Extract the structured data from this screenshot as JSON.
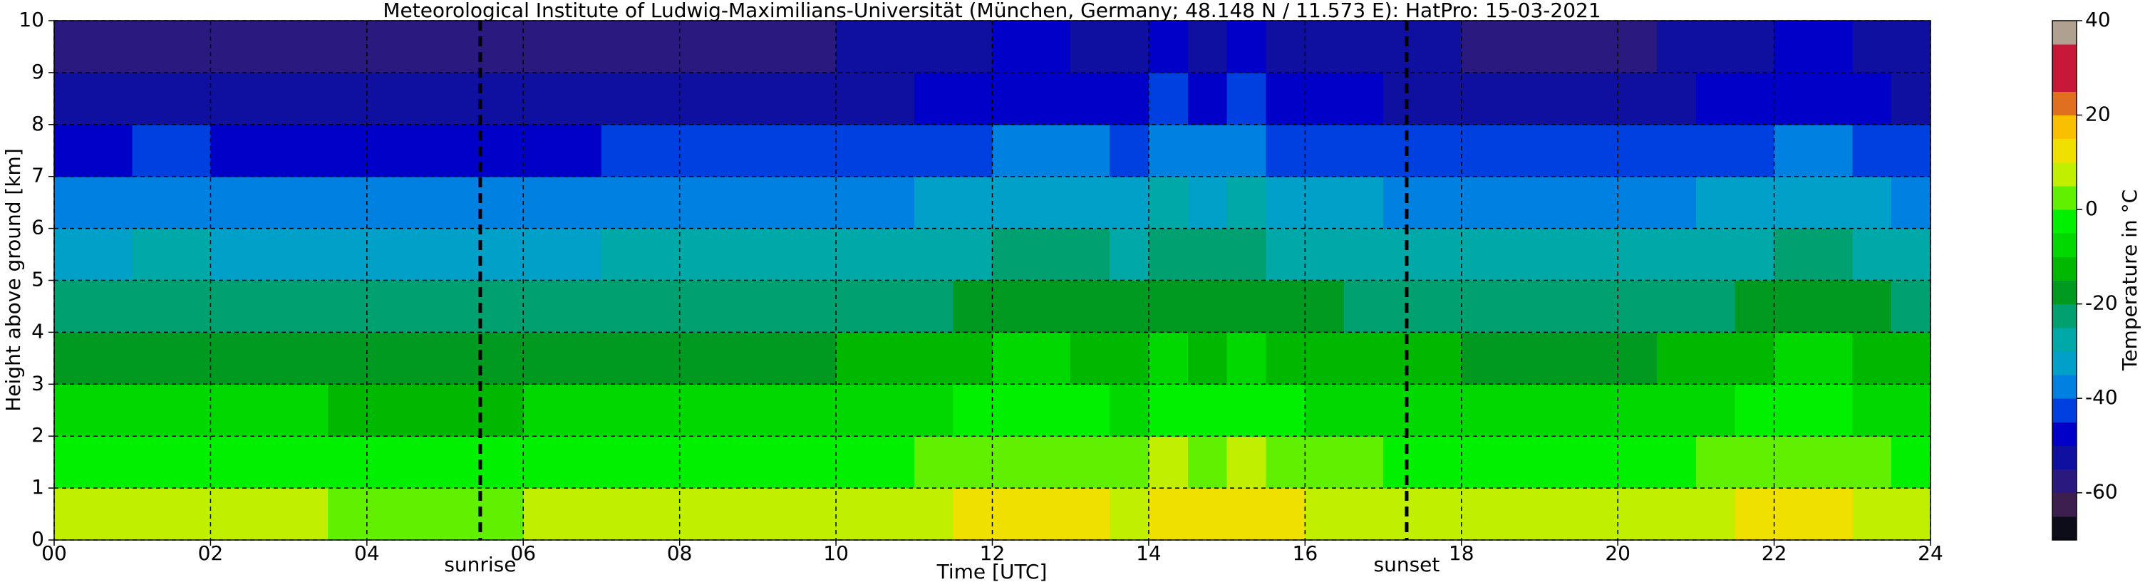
{
  "chart_data": {
    "type": "heatmap",
    "title": "Meteorological Institute of Ludwig-Maximilians-Universität (München, Germany; 48.148 N / 11.573 E):    HatPro: 15-03-2021",
    "x_label": "Time [UTC]",
    "y_label": "Height above ground [km]",
    "x": [
      0,
      0.5,
      1,
      1.5,
      2,
      2.5,
      3,
      3.5,
      4,
      4.5,
      5,
      5.5,
      6,
      6.5,
      7,
      7.5,
      8,
      8.5,
      9,
      9.5,
      10,
      10.5,
      11,
      11.5,
      12,
      12.5,
      13,
      13.5,
      14,
      14.5,
      15,
      15.5,
      16,
      16.5,
      17,
      17.5,
      18,
      18.5,
      19,
      19.5,
      20,
      20.5,
      21,
      21.5,
      22,
      22.5,
      23,
      23.5
    ],
    "y": [
      0,
      1,
      2,
      3,
      4,
      5,
      6,
      7,
      8,
      9
    ],
    "z": [
      [
        5,
        5,
        6,
        6,
        5,
        5,
        5,
        4,
        4,
        4,
        4,
        4,
        5,
        5,
        6,
        6,
        6,
        6,
        6,
        6,
        7,
        7,
        8,
        10,
        12,
        12,
        11,
        9,
        13,
        11,
        13,
        10,
        9,
        8,
        7,
        7,
        6,
        6,
        6,
        6,
        6,
        7,
        8,
        10,
        12,
        12,
        9,
        7
      ],
      [
        -3,
        -3,
        -2,
        -2,
        -3,
        -3,
        -3,
        -4,
        -4,
        -4,
        -4,
        -4,
        -3,
        -3,
        -2,
        -2,
        -2,
        -2,
        -2,
        -2,
        -1,
        -1,
        0,
        2,
        4,
        4,
        3,
        1,
        5,
        3,
        5,
        2,
        1,
        0,
        -1,
        -1,
        -2,
        -2,
        -2,
        -2,
        -2,
        -1,
        0,
        2,
        4,
        4,
        1,
        -1
      ],
      [
        -10,
        -10,
        -9,
        -9,
        -10,
        -10,
        -10,
        -11,
        -11,
        -11,
        -11,
        -11,
        -10,
        -10,
        -9,
        -9,
        -9,
        -9,
        -9,
        -9,
        -8,
        -8,
        -7,
        -5,
        -3,
        -3,
        -4,
        -6,
        -2,
        -4,
        -2,
        -5,
        -6,
        -7,
        -8,
        -8,
        -9,
        -9,
        -9,
        -9,
        -9,
        -8,
        -7,
        -5,
        -3,
        -3,
        -6,
        -8
      ],
      [
        -17,
        -17,
        -16,
        -16,
        -17,
        -17,
        -17,
        -18,
        -18,
        -18,
        -18,
        -18,
        -17,
        -17,
        -16,
        -16,
        -16,
        -16,
        -16,
        -16,
        -15,
        -15,
        -14,
        -12,
        -10,
        -10,
        -11,
        -13,
        -9,
        -11,
        -9,
        -12,
        -13,
        -14,
        -15,
        -15,
        -16,
        -16,
        -16,
        -16,
        -16,
        -15,
        -14,
        -12,
        -10,
        -10,
        -13,
        -15
      ],
      [
        -24,
        -24,
        -23,
        -23,
        -24,
        -24,
        -24,
        -25,
        -25,
        -25,
        -25,
        -25,
        -24,
        -24,
        -23,
        -23,
        -23,
        -23,
        -23,
        -23,
        -22,
        -22,
        -21,
        -19,
        -17,
        -17,
        -18,
        -20,
        -16,
        -18,
        -16,
        -19,
        -20,
        -21,
        -22,
        -22,
        -23,
        -23,
        -23,
        -23,
        -23,
        -22,
        -21,
        -19,
        -17,
        -17,
        -20,
        -22
      ],
      [
        -31,
        -31,
        -30,
        -30,
        -31,
        -31,
        -31,
        -32,
        -32,
        -32,
        -32,
        -32,
        -31,
        -31,
        -30,
        -30,
        -30,
        -30,
        -30,
        -30,
        -29,
        -29,
        -28,
        -26,
        -24,
        -24,
        -25,
        -27,
        -23,
        -25,
        -23,
        -26,
        -27,
        -28,
        -29,
        -29,
        -30,
        -30,
        -30,
        -30,
        -30,
        -29,
        -28,
        -26,
        -24,
        -24,
        -27,
        -29
      ],
      [
        -38,
        -38,
        -37,
        -37,
        -38,
        -38,
        -38,
        -39,
        -39,
        -39,
        -39,
        -39,
        -38,
        -38,
        -37,
        -37,
        -37,
        -37,
        -37,
        -37,
        -36,
        -36,
        -35,
        -33,
        -31,
        -31,
        -32,
        -34,
        -30,
        -32,
        -30,
        -33,
        -34,
        -35,
        -36,
        -36,
        -37,
        -37,
        -37,
        -37,
        -37,
        -36,
        -35,
        -33,
        -31,
        -31,
        -34,
        -36
      ],
      [
        -46,
        -46,
        -45,
        -45,
        -46,
        -46,
        -46,
        -47,
        -47,
        -47,
        -47,
        -47,
        -46,
        -46,
        -45,
        -45,
        -45,
        -45,
        -45,
        -45,
        -44,
        -44,
        -43,
        -41,
        -39,
        -39,
        -40,
        -42,
        -38,
        -40,
        -38,
        -41,
        -42,
        -43,
        -44,
        -44,
        -45,
        -45,
        -45,
        -45,
        -45,
        -44,
        -43,
        -41,
        -39,
        -39,
        -42,
        -44
      ],
      [
        -53,
        -53,
        -52,
        -52,
        -53,
        -53,
        -53,
        -54,
        -54,
        -54,
        -54,
        -54,
        -53,
        -53,
        -52,
        -52,
        -52,
        -52,
        -52,
        -52,
        -51,
        -51,
        -50,
        -48,
        -46,
        -46,
        -47,
        -49,
        -45,
        -47,
        -45,
        -48,
        -49,
        -50,
        -51,
        -51,
        -52,
        -52,
        -52,
        -52,
        -52,
        -51,
        -50,
        -48,
        -46,
        -46,
        -49,
        -51
      ],
      [
        -57,
        -57,
        -56,
        -56,
        -57,
        -57,
        -57,
        -58,
        -58,
        -58,
        -58,
        -58,
        -57,
        -57,
        -56,
        -56,
        -56,
        -56,
        -56,
        -56,
        -55,
        -55,
        -54,
        -52,
        -50,
        -50,
        -51,
        -53,
        -49,
        -51,
        -49,
        -52,
        -53,
        -54,
        -55,
        -55,
        -56,
        -56,
        -56,
        -56,
        -56,
        -55,
        -54,
        -52,
        -50,
        -50,
        -53,
        -55
      ]
    ],
    "xlim": [
      0,
      24
    ],
    "ylim": [
      0,
      10
    ],
    "xticks": [
      {
        "value": 0,
        "label": "00"
      },
      {
        "value": 2,
        "label": "02"
      },
      {
        "value": 4,
        "label": "04"
      },
      {
        "value": 6,
        "label": "06"
      },
      {
        "value": 8,
        "label": "08"
      },
      10,
      12,
      14,
      16,
      18,
      20,
      22,
      24
    ],
    "yticks": [
      0,
      1,
      2,
      3,
      4,
      5,
      6,
      7,
      8,
      9,
      10
    ],
    "grid": true,
    "annotations": [
      {
        "x": 5.45,
        "label": "sunrise"
      },
      {
        "x": 17.3,
        "label": "sunset"
      }
    ],
    "colorbar": {
      "label": "Temperature in °C",
      "levels": [
        -70,
        -65,
        -60,
        -55,
        -50,
        -45,
        -40,
        -35,
        -30,
        -25,
        -20,
        -15,
        -10,
        -5,
        0,
        5,
        10,
        15,
        20,
        25,
        30,
        35,
        40
      ],
      "colors": [
        "#0d0d1a",
        "#3d1f4f",
        "#2a1a80",
        "#1010a0",
        "#0000c8",
        "#0040e0",
        "#0080e0",
        "#00a0c8",
        "#00a8a8",
        "#00a070",
        "#009a20",
        "#00b800",
        "#00d800",
        "#00f000",
        "#60f000",
        "#c0f000",
        "#f0e000",
        "#f8c000",
        "#e07020",
        "#c81838",
        "#c81838",
        "#b0a090"
      ],
      "ticks": [
        -60,
        -40,
        -20,
        0,
        20,
        40
      ]
    }
  }
}
